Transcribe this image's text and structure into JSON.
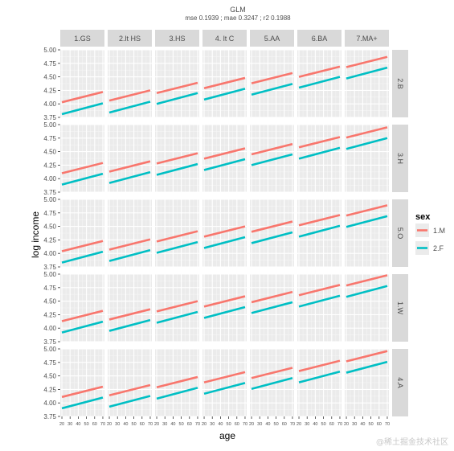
{
  "chart_data": {
    "type": "line",
    "title": "GLM",
    "subtitle": "mse 0.1939 ; mae 0.3247 ; r2 0.1988",
    "xlabel": "age",
    "ylabel": "log income",
    "column_facets": [
      "1.GS",
      "2.lt HS",
      "3.HS",
      "4. lt C",
      "5.AA",
      "6.BA",
      "7.MA+"
    ],
    "row_facets": [
      "2.B",
      "3.H",
      "5.O",
      "1.W",
      "4.A"
    ],
    "x_ticks": [
      20,
      30,
      40,
      50,
      60,
      70
    ],
    "x_tick_labels": [
      "20",
      "30",
      "40",
      "50",
      "60",
      "70"
    ],
    "xlim": [
      18,
      72
    ],
    "y_ticks": [
      3.75,
      4.0,
      4.25,
      4.5,
      4.75,
      5.0
    ],
    "y_tick_labels": [
      "3.75",
      "4.00",
      "4.25",
      "4.50",
      "4.75",
      "5.00"
    ],
    "ylim": [
      3.75,
      5.0
    ],
    "grid": true,
    "legend": {
      "title": "sex",
      "position": "right",
      "entries": [
        {
          "label": "1.M",
          "color": "#F8766D"
        },
        {
          "label": "2.F",
          "color": "#00BFC4"
        }
      ]
    },
    "x_range": [
      20,
      70
    ],
    "panels": [
      {
        "row": "2.B",
        "lines": [
          {
            "col": "1.GS",
            "M": [
              4.03,
              4.22
            ],
            "F": [
              3.81,
              4.01
            ]
          },
          {
            "col": "2.lt HS",
            "M": [
              4.06,
              4.25
            ],
            "F": [
              3.84,
              4.04
            ]
          },
          {
            "col": "3.HS",
            "M": [
              4.2,
              4.39
            ],
            "F": [
              4.0,
              4.2
            ]
          },
          {
            "col": "4. lt C",
            "M": [
              4.29,
              4.48
            ],
            "F": [
              4.08,
              4.28
            ]
          },
          {
            "col": "5.AA",
            "M": [
              4.38,
              4.57
            ],
            "F": [
              4.17,
              4.37
            ]
          },
          {
            "col": "6.BA",
            "M": [
              4.5,
              4.69
            ],
            "F": [
              4.3,
              4.5
            ]
          },
          {
            "col": "7.MA+",
            "M": [
              4.68,
              4.87
            ],
            "F": [
              4.47,
              4.67
            ]
          }
        ]
      },
      {
        "row": "3.H",
        "lines": [
          {
            "col": "1.GS",
            "M": [
              4.1,
              4.29
            ],
            "F": [
              3.89,
              4.09
            ]
          },
          {
            "col": "2.lt HS",
            "M": [
              4.13,
              4.32
            ],
            "F": [
              3.92,
              4.12
            ]
          },
          {
            "col": "3.HS",
            "M": [
              4.28,
              4.47
            ],
            "F": [
              4.07,
              4.27
            ]
          },
          {
            "col": "4. lt C",
            "M": [
              4.37,
              4.56
            ],
            "F": [
              4.16,
              4.36
            ]
          },
          {
            "col": "5.AA",
            "M": [
              4.45,
              4.64
            ],
            "F": [
              4.25,
              4.45
            ]
          },
          {
            "col": "6.BA",
            "M": [
              4.58,
              4.77
            ],
            "F": [
              4.37,
              4.57
            ]
          },
          {
            "col": "7.MA+",
            "M": [
              4.76,
              4.95
            ],
            "F": [
              4.55,
              4.75
            ]
          }
        ]
      },
      {
        "row": "5.O",
        "lines": [
          {
            "col": "1.GS",
            "M": [
              4.04,
              4.23
            ],
            "F": [
              3.83,
              4.03
            ]
          },
          {
            "col": "2.lt HS",
            "M": [
              4.07,
              4.26
            ],
            "F": [
              3.86,
              4.06
            ]
          },
          {
            "col": "3.HS",
            "M": [
              4.22,
              4.41
            ],
            "F": [
              4.01,
              4.21
            ]
          },
          {
            "col": "4. lt C",
            "M": [
              4.31,
              4.5
            ],
            "F": [
              4.1,
              4.3
            ]
          },
          {
            "col": "5.AA",
            "M": [
              4.4,
              4.59
            ],
            "F": [
              4.19,
              4.39
            ]
          },
          {
            "col": "6.BA",
            "M": [
              4.52,
              4.71
            ],
            "F": [
              4.31,
              4.51
            ]
          },
          {
            "col": "7.MA+",
            "M": [
              4.7,
              4.89
            ],
            "F": [
              4.49,
              4.69
            ]
          }
        ]
      },
      {
        "row": "1.W",
        "lines": [
          {
            "col": "1.GS",
            "M": [
              4.13,
              4.32
            ],
            "F": [
              3.92,
              4.12
            ]
          },
          {
            "col": "2.lt HS",
            "M": [
              4.16,
              4.35
            ],
            "F": [
              3.95,
              4.15
            ]
          },
          {
            "col": "3.HS",
            "M": [
              4.31,
              4.5
            ],
            "F": [
              4.1,
              4.3
            ]
          },
          {
            "col": "4. lt C",
            "M": [
              4.4,
              4.59
            ],
            "F": [
              4.19,
              4.39
            ]
          },
          {
            "col": "5.AA",
            "M": [
              4.48,
              4.67
            ],
            "F": [
              4.28,
              4.48
            ]
          },
          {
            "col": "6.BA",
            "M": [
              4.61,
              4.8
            ],
            "F": [
              4.4,
              4.6
            ]
          },
          {
            "col": "7.MA+",
            "M": [
              4.79,
              4.98
            ],
            "F": [
              4.58,
              4.78
            ]
          }
        ]
      },
      {
        "row": "4.A",
        "lines": [
          {
            "col": "1.GS",
            "M": [
              4.11,
              4.3
            ],
            "F": [
              3.9,
              4.1
            ]
          },
          {
            "col": "2.lt HS",
            "M": [
              4.14,
              4.33
            ],
            "F": [
              3.93,
              4.13
            ]
          },
          {
            "col": "3.HS",
            "M": [
              4.29,
              4.48
            ],
            "F": [
              4.08,
              4.28
            ]
          },
          {
            "col": "4. lt C",
            "M": [
              4.38,
              4.57
            ],
            "F": [
              4.17,
              4.37
            ]
          },
          {
            "col": "5.AA",
            "M": [
              4.46,
              4.65
            ],
            "F": [
              4.26,
              4.46
            ]
          },
          {
            "col": "6.BA",
            "M": [
              4.59,
              4.78
            ],
            "F": [
              4.38,
              4.58
            ]
          },
          {
            "col": "7.MA+",
            "M": [
              4.77,
              4.96
            ],
            "F": [
              4.56,
              4.76
            ]
          }
        ]
      }
    ]
  },
  "watermark": "@稀土掘金技术社区"
}
